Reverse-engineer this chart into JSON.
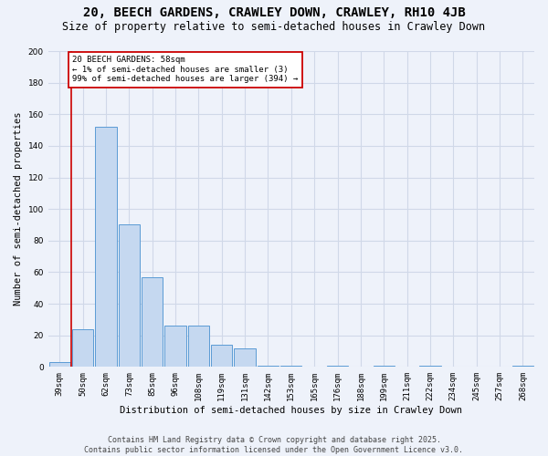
{
  "title": "20, BEECH GARDENS, CRAWLEY DOWN, CRAWLEY, RH10 4JB",
  "subtitle": "Size of property relative to semi-detached houses in Crawley Down",
  "xlabel": "Distribution of semi-detached houses by size in Crawley Down",
  "ylabel": "Number of semi-detached properties",
  "footer_line1": "Contains HM Land Registry data © Crown copyright and database right 2025.",
  "footer_line2": "Contains public sector information licensed under the Open Government Licence v3.0.",
  "bin_labels": [
    "39sqm",
    "50sqm",
    "62sqm",
    "73sqm",
    "85sqm",
    "96sqm",
    "108sqm",
    "119sqm",
    "131sqm",
    "142sqm",
    "153sqm",
    "165sqm",
    "176sqm",
    "188sqm",
    "199sqm",
    "211sqm",
    "222sqm",
    "234sqm",
    "245sqm",
    "257sqm",
    "268sqm"
  ],
  "bar_values": [
    3,
    24,
    152,
    90,
    57,
    26,
    26,
    14,
    12,
    1,
    1,
    0,
    1,
    0,
    1,
    0,
    1,
    0,
    0,
    0,
    1
  ],
  "bar_color": "#c5d8f0",
  "bar_edge_color": "#5b9bd5",
  "grid_color": "#d0d8e8",
  "background_color": "#eef2fa",
  "annotation_box_color": "#ffffff",
  "annotation_border_color": "#cc0000",
  "annotation_text_line1": "20 BEECH GARDENS: 58sqm",
  "annotation_text_line2": "← 1% of semi-detached houses are smaller (3)",
  "annotation_text_line3": "99% of semi-detached houses are larger (394) →",
  "property_line_x": 0.5,
  "ylim": [
    0,
    200
  ],
  "yticks": [
    0,
    20,
    40,
    60,
    80,
    100,
    120,
    140,
    160,
    180,
    200
  ],
  "title_fontsize": 10,
  "subtitle_fontsize": 8.5,
  "axis_label_fontsize": 7.5,
  "tick_fontsize": 6.5,
  "annotation_fontsize": 6.5,
  "footer_fontsize": 6
}
